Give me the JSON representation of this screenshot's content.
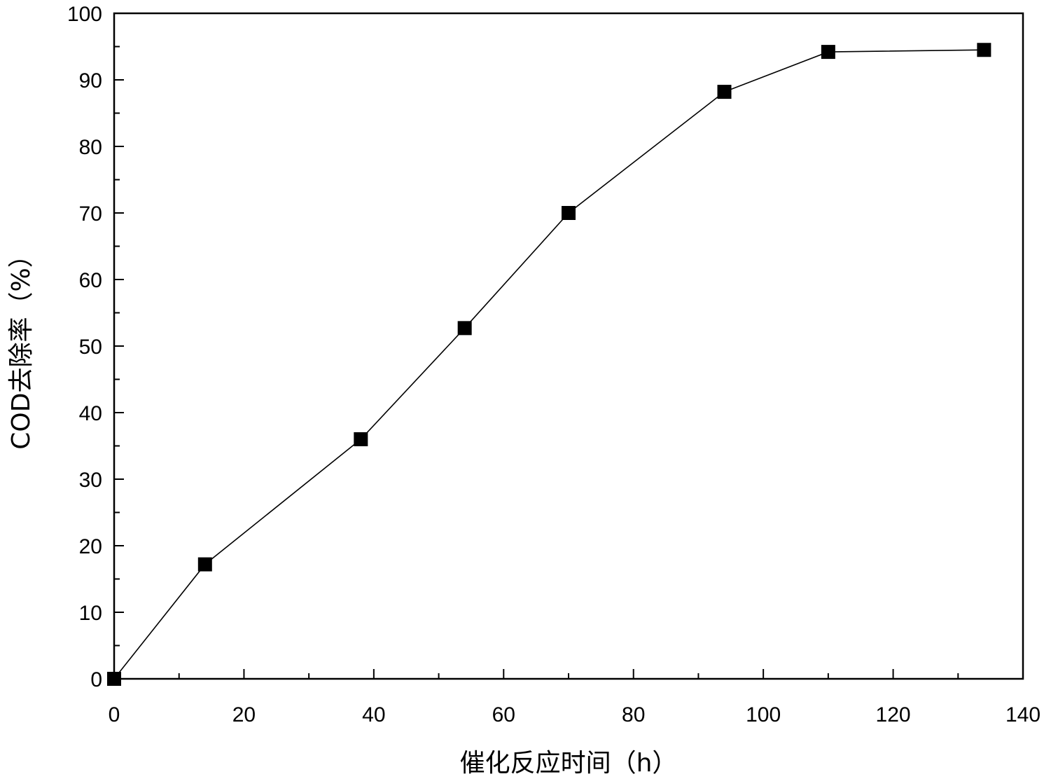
{
  "chart_data": {
    "type": "line",
    "title": "",
    "xlabel": "催化反应时间（h）",
    "ylabel": "COD去除率（%）",
    "xlim": [
      0,
      140
    ],
    "ylim": [
      0,
      100
    ],
    "x_ticks": [
      "0",
      "20",
      "40",
      "60",
      "80",
      "100",
      "120",
      "140"
    ],
    "y_ticks": [
      "0",
      "10",
      "20",
      "30",
      "40",
      "50",
      "60",
      "70",
      "80",
      "90",
      "100"
    ],
    "grid": false,
    "legend": "none",
    "marker": "square",
    "series": [
      {
        "x": [
          0,
          14,
          38,
          54,
          70,
          94,
          110,
          134
        ],
        "y": [
          0,
          17.2,
          36,
          52.7,
          70,
          88.2,
          94.2,
          94.5
        ]
      }
    ],
    "colors": {
      "line": "#000000",
      "marker": "#000000",
      "axis": "#000000"
    }
  }
}
